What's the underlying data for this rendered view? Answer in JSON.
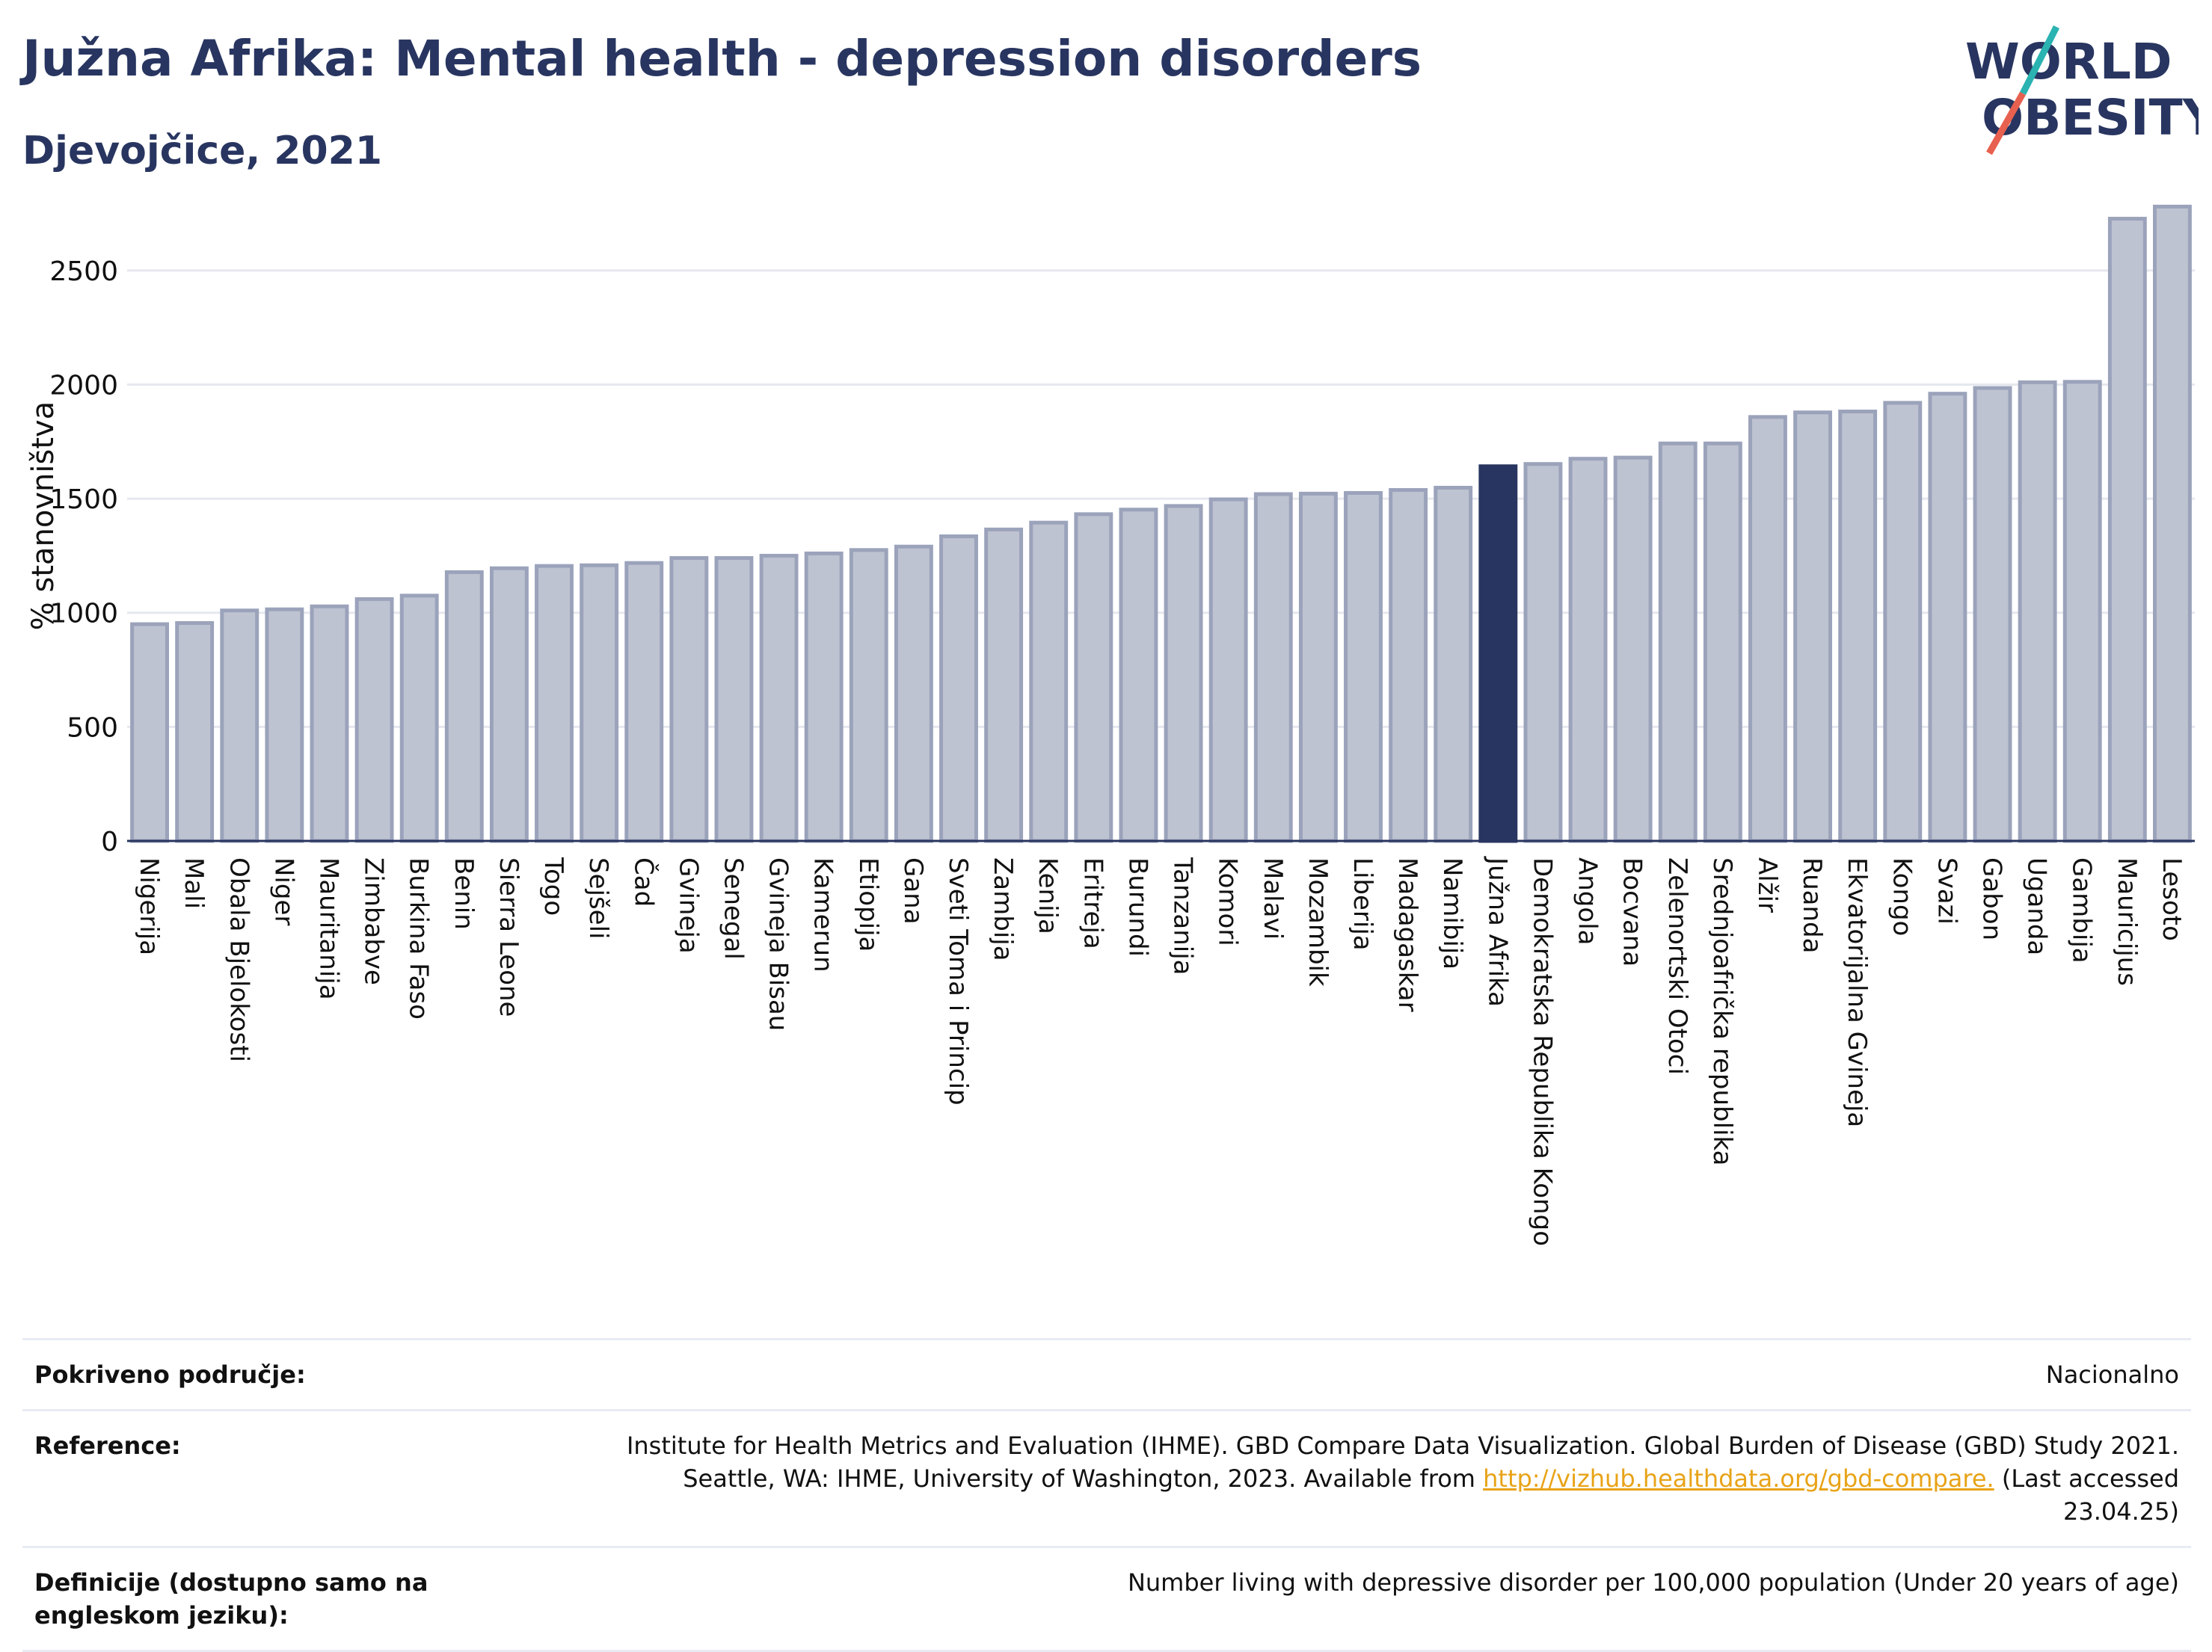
{
  "header": {
    "title": "Južna Afrika: Mental health - depression disorders",
    "subtitle": "Djevojčice, 2021"
  },
  "logo": {
    "line1": "WORLD",
    "line2": "OBESITY"
  },
  "colors": {
    "bar": "#bec3d1",
    "bar_border": "#9ba3bb",
    "highlight": "#283560",
    "grid": "#e6e8ef",
    "title": "#283560"
  },
  "chart_data": {
    "type": "bar",
    "ylabel": "% stanovništva",
    "ylim": [
      0,
      2850
    ],
    "yticks": [
      0,
      500,
      1000,
      1500,
      2000,
      2500
    ],
    "grid": true,
    "highlight": "Južna Afrika",
    "categories": [
      "Nigerija",
      "Mali",
      "Obala Bjelokosti",
      "Niger",
      "Mauritanija",
      "Zimbabve",
      "Burkina Faso",
      "Benin",
      "Sierra Leone",
      "Togo",
      "Sejšeli",
      "Čad",
      "Gvineja",
      "Senegal",
      "Gvineja Bisau",
      "Kamerun",
      "Etiopija",
      "Gana",
      "Sveti Toma i Princip",
      "Zambija",
      "Kenija",
      "Eritreja",
      "Burundi",
      "Tanzanija",
      "Komori",
      "Malavi",
      "Mozambik",
      "Liberija",
      "Madagaskar",
      "Namibija",
      "Južna Afrika",
      "Demokratska Republika Kongo",
      "Angola",
      "Bocvana",
      "Zelenortski Otoci",
      "Srednjoafrička republika",
      "Alžir",
      "Ruanda",
      "Ekvatorijalna Gvineja",
      "Kongo",
      "Svazi",
      "Gabon",
      "Uganda",
      "Gambija",
      "Mauricijus",
      "Lesoto"
    ],
    "values": [
      950,
      955,
      1010,
      1015,
      1028,
      1060,
      1075,
      1178,
      1195,
      1205,
      1208,
      1218,
      1240,
      1240,
      1250,
      1260,
      1275,
      1290,
      1335,
      1365,
      1395,
      1432,
      1452,
      1468,
      1497,
      1520,
      1522,
      1525,
      1538,
      1548,
      1642,
      1652,
      1675,
      1680,
      1742,
      1742,
      1858,
      1878,
      1882,
      1920,
      1960,
      1985,
      2010,
      2012,
      2727,
      2780
    ]
  },
  "footer": {
    "rows": [
      {
        "key": "Pokriveno područje:",
        "value": "Nacionalno"
      },
      {
        "key": "Reference:",
        "value_line1": "Institute for Health Metrics and Evaluation (IHME). GBD Compare Data Visualization. Global Burden of Disease (GBD) Study 2021.",
        "value_line2_pre": "Seattle, WA: IHME, University of Washington, 2023. Available from ",
        "link": "http://vizhub.healthdata.org/gbd-compare.",
        "value_line2_post": " (Last accessed 23.04.25)"
      },
      {
        "key": "Definicije (dostupno samo na engleskom jeziku):",
        "value": "Number living with depressive disorder per 100,000 population (Under 20 years of age)"
      }
    ]
  }
}
